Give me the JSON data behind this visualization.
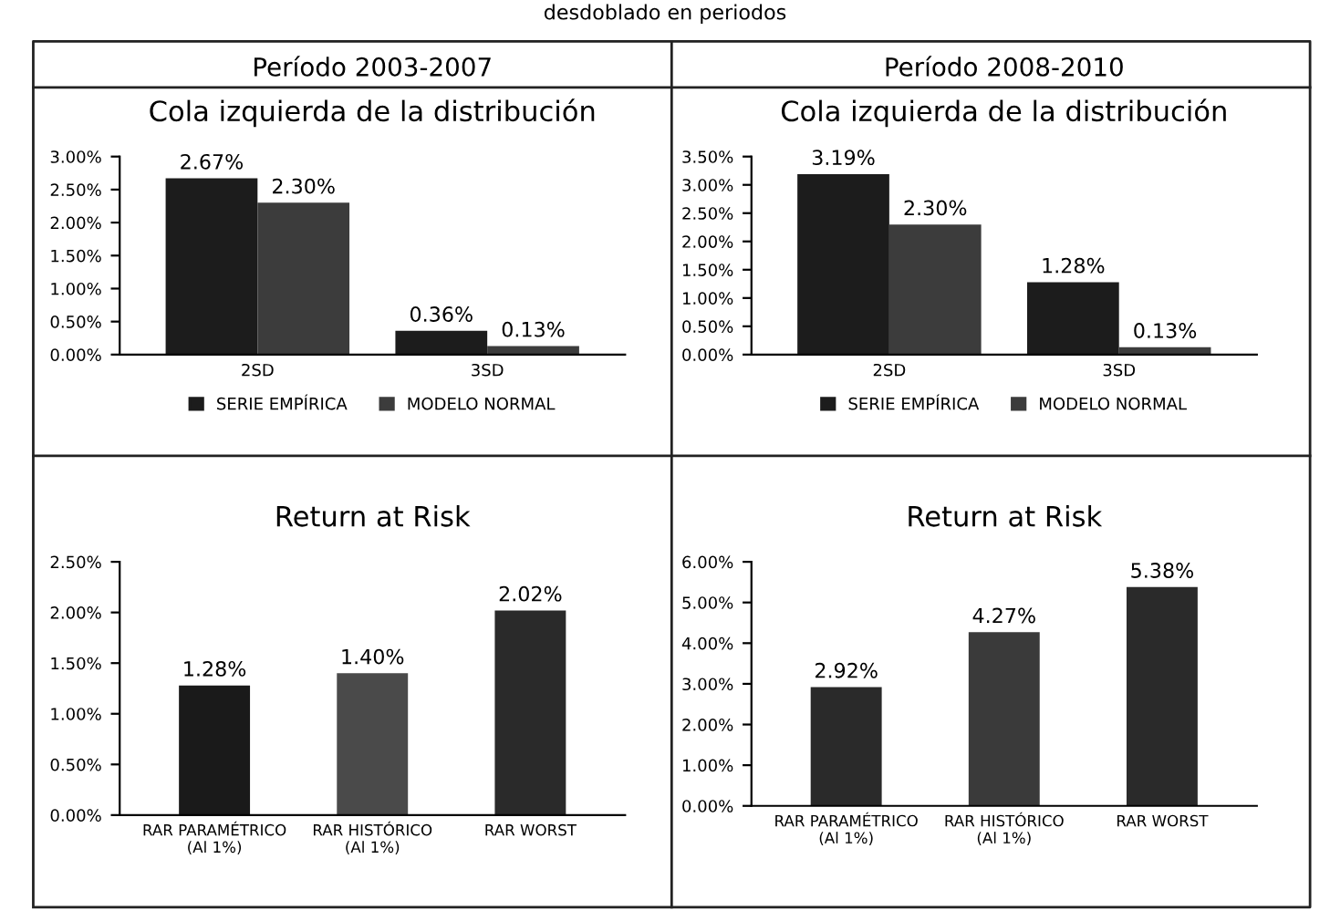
{
  "chart_data": [
    {
      "type": "bar",
      "subtitle": "Período 2003-2007",
      "title": "Cola izquierda de la distribución",
      "annotations": [
        "desdoblado en periodos"
      ],
      "categories": [
        "2SD",
        "3SD"
      ],
      "series": [
        {
          "name": "SERIE EMPÍRICA",
          "color": "#1c1c1c",
          "values": [
            2.67,
            0.36
          ],
          "value_labels": [
            "2.67%",
            "0.36%"
          ]
        },
        {
          "name": "MODELO NORMAL",
          "color": "#3c3c3c",
          "values": [
            2.3,
            0.13
          ],
          "value_labels": [
            "2.30%",
            "0.13%"
          ]
        }
      ],
      "ylim": [
        0,
        3.0
      ],
      "yticks": [
        {
          "value": 0,
          "label": "0.00%"
        },
        {
          "value": 0.5,
          "label": "0.50%"
        },
        {
          "value": 1.0,
          "label": "1.00%"
        },
        {
          "value": 1.5,
          "label": "1.50%"
        },
        {
          "value": 2.0,
          "label": "2.00%"
        },
        {
          "value": 2.5,
          "label": "2.50%"
        },
        {
          "value": 3.0,
          "label": "3.00%"
        }
      ],
      "legend": "bottom"
    },
    {
      "type": "bar",
      "subtitle": "Período 2008-2010",
      "title": "Cola izquierda de la distribución",
      "categories": [
        "2SD",
        "3SD"
      ],
      "series": [
        {
          "name": "SERIE EMPÍRICA",
          "color": "#1c1c1c",
          "values": [
            3.19,
            1.28
          ],
          "value_labels": [
            "3.19%",
            "1.28%"
          ]
        },
        {
          "name": "MODELO NORMAL",
          "color": "#3c3c3c",
          "values": [
            2.3,
            0.13
          ],
          "value_labels": [
            "2.30%",
            "0.13%"
          ]
        }
      ],
      "ylim": [
        0,
        3.5
      ],
      "yticks": [
        {
          "value": 0,
          "label": "0.00%"
        },
        {
          "value": 0.5,
          "label": "0.50%"
        },
        {
          "value": 1.0,
          "label": "1.00%"
        },
        {
          "value": 1.5,
          "label": "1.50%"
        },
        {
          "value": 2.0,
          "label": "2.00%"
        },
        {
          "value": 2.5,
          "label": "2.50%"
        },
        {
          "value": 3.0,
          "label": "3.00%"
        },
        {
          "value": 3.5,
          "label": "3.50%"
        }
      ],
      "legend": "bottom"
    },
    {
      "type": "bar",
      "title": "Return at Risk",
      "categories": [
        "RAR PARAMÉTRICO (Al 1%)",
        "RAR HISTÓRICO (Al 1%)",
        "RAR WORST"
      ],
      "values": [
        1.28,
        1.4,
        2.02
      ],
      "value_labels": [
        "1.28%",
        "1.40%",
        "2.02%"
      ],
      "colors": [
        "#1a1a1a",
        "#4a4a4a",
        "#2a2a2a"
      ],
      "ylim": [
        0,
        2.5
      ],
      "yticks": [
        {
          "value": 0,
          "label": "0.00%"
        },
        {
          "value": 0.5,
          "label": "0.50%"
        },
        {
          "value": 1.0,
          "label": "1.00%"
        },
        {
          "value": 1.5,
          "label": "1.50%"
        },
        {
          "value": 2.0,
          "label": "2.00%"
        },
        {
          "value": 2.5,
          "label": "2.50%"
        }
      ]
    },
    {
      "type": "bar",
      "title": "Return at Risk",
      "categories": [
        "RAR PARAMÉTRICO (Al 1%)",
        "RAR HISTÓRICO (Al 1%)",
        "RAR WORST"
      ],
      "values": [
        2.92,
        4.27,
        5.38
      ],
      "value_labels": [
        "2.92%",
        "4.27%",
        "5.38%"
      ],
      "colors": [
        "#2a2a2a",
        "#3a3a3a",
        "#2a2a2a"
      ],
      "ylim": [
        0,
        6.0
      ],
      "yticks": [
        {
          "value": 0,
          "label": "0.00%"
        },
        {
          "value": 1.0,
          "label": "1.00%"
        },
        {
          "value": 2.0,
          "label": "2.00%"
        },
        {
          "value": 3.0,
          "label": "3.00%"
        },
        {
          "value": 4.0,
          "label": "4.00%"
        },
        {
          "value": 5.0,
          "label": "5.00%"
        },
        {
          "value": 6.0,
          "label": "6.00%"
        }
      ]
    }
  ]
}
